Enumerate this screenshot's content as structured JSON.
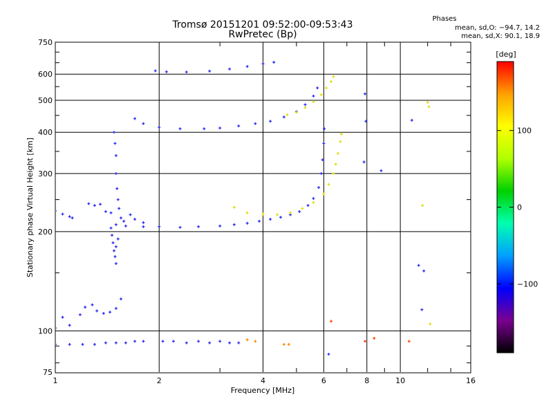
{
  "title_line1": "Tromsø 20151201 09:52:00-09:53:43",
  "title_line2": "RwPretec (Bp)",
  "phases_header": "Phases",
  "phases_o": "mean, sd,O: −94.7, 14.2",
  "phases_x": "mean, sd,X:  90.1, 18.9",
  "colorbar": {
    "unit": "[deg]",
    "ticks": [
      {
        "value": 100,
        "label": "100"
      },
      {
        "value": 0,
        "label": "0"
      },
      {
        "value": -100,
        "label": "−100"
      }
    ],
    "range": [
      -190,
      190
    ],
    "colors": [
      "#000000",
      "#7a0090",
      "#0000ff",
      "#00a0ff",
      "#00ffb0",
      "#00d000",
      "#b0ff00",
      "#ffff00",
      "#ffa000",
      "#ff0000"
    ]
  },
  "chart_data": {
    "type": "scatter",
    "xlabel": "Frequency [MHz]",
    "ylabel": "Stationary phase Virtual Height [km]",
    "x_scale": "log",
    "y_scale": "log",
    "xlim": [
      1,
      16
    ],
    "ylim": [
      75,
      750
    ],
    "x_ticks": [
      {
        "value": 1,
        "label": "1"
      },
      {
        "value": 2,
        "label": "2"
      },
      {
        "value": 4,
        "label": "4"
      },
      {
        "value": 6,
        "label": "6"
      },
      {
        "value": 8,
        "label": "8"
      },
      {
        "value": 10,
        "label": "10"
      },
      {
        "value": 16,
        "label": "16"
      }
    ],
    "y_ticks": [
      {
        "value": 750,
        "label": "750"
      },
      {
        "value": 600,
        "label": "600"
      },
      {
        "value": 500,
        "label": "500"
      },
      {
        "value": 400,
        "label": "400"
      },
      {
        "value": 300,
        "label": "300"
      },
      {
        "value": 200,
        "label": "200"
      },
      {
        "value": 100,
        "label": "100"
      },
      {
        "value": 75,
        "label": "75"
      }
    ],
    "grid": true,
    "series": [
      {
        "color": "#2a2af0",
        "points": [
          [
            1.0,
            231
          ],
          [
            1.05,
            226
          ],
          [
            1.1,
            222
          ],
          [
            1.12,
            220
          ],
          [
            1.25,
            243
          ],
          [
            1.3,
            240
          ],
          [
            1.35,
            242
          ],
          [
            1.4,
            230
          ],
          [
            1.45,
            228
          ]
        ]
      },
      {
        "color": "#2a2af0",
        "points": [
          [
            1.48,
            400
          ],
          [
            1.49,
            370
          ],
          [
            1.5,
            340
          ],
          [
            1.5,
            300
          ],
          [
            1.51,
            270
          ],
          [
            1.52,
            250
          ],
          [
            1.53,
            235
          ],
          [
            1.55,
            220
          ],
          [
            1.58,
            215
          ],
          [
            1.65,
            225
          ],
          [
            1.7,
            218
          ],
          [
            1.8,
            213
          ]
        ]
      },
      {
        "color": "#2a2af0",
        "points": [
          [
            1.45,
            205
          ],
          [
            1.46,
            195
          ],
          [
            1.47,
            185
          ],
          [
            1.48,
            175
          ],
          [
            1.49,
            168
          ],
          [
            1.5,
            180
          ],
          [
            1.5,
            160
          ],
          [
            1.52,
            190
          ]
        ]
      },
      {
        "color": "#2a2af0",
        "points": [
          [
            1.5,
            210
          ],
          [
            1.6,
            208
          ],
          [
            1.8,
            207
          ],
          [
            2.0,
            207
          ],
          [
            2.3,
            206
          ],
          [
            2.6,
            207
          ],
          [
            3.0,
            208
          ],
          [
            3.3,
            210
          ],
          [
            3.6,
            212
          ],
          [
            3.9,
            215
          ],
          [
            4.2,
            218
          ],
          [
            4.5,
            221
          ],
          [
            4.8,
            225
          ],
          [
            5.1,
            230
          ],
          [
            5.4,
            240
          ],
          [
            5.6,
            252
          ],
          [
            5.8,
            272
          ],
          [
            5.9,
            300
          ],
          [
            5.95,
            330
          ],
          [
            6.0,
            370
          ],
          [
            6.02,
            410
          ]
        ]
      },
      {
        "color": "#2a2af0",
        "points": [
          [
            1.7,
            440
          ],
          [
            1.8,
            425
          ],
          [
            2.0,
            414
          ],
          [
            2.3,
            410
          ],
          [
            2.7,
            410
          ],
          [
            3.0,
            412
          ],
          [
            3.4,
            418
          ],
          [
            3.8,
            425
          ],
          [
            4.2,
            432
          ],
          [
            4.6,
            445
          ],
          [
            5.0,
            462
          ],
          [
            5.3,
            485
          ],
          [
            5.6,
            515
          ],
          [
            5.75,
            545
          ]
        ]
      },
      {
        "color": "#2a2af0",
        "points": [
          [
            1.95,
            614
          ],
          [
            2.1,
            610
          ],
          [
            2.4,
            609
          ],
          [
            2.8,
            613
          ],
          [
            3.2,
            622
          ],
          [
            3.6,
            633
          ],
          [
            4.0,
            645
          ],
          [
            4.3,
            652
          ]
        ]
      },
      {
        "color": "#2a2af0",
        "points": [
          [
            1.0,
            102
          ],
          [
            1.05,
            110
          ],
          [
            1.1,
            104
          ],
          [
            1.18,
            112
          ],
          [
            1.22,
            118
          ],
          [
            1.28,
            120
          ],
          [
            1.32,
            115
          ],
          [
            1.38,
            113
          ],
          [
            1.44,
            114
          ],
          [
            1.5,
            117
          ],
          [
            1.55,
            125
          ]
        ]
      },
      {
        "color": "#2a2af0",
        "points": [
          [
            1.0,
            91
          ],
          [
            1.1,
            91
          ],
          [
            1.2,
            91
          ],
          [
            1.3,
            91
          ],
          [
            1.4,
            92
          ],
          [
            1.5,
            92
          ],
          [
            1.6,
            92
          ],
          [
            1.7,
            93
          ],
          [
            1.8,
            93
          ],
          [
            2.05,
            93
          ],
          [
            2.2,
            93
          ],
          [
            2.4,
            92
          ],
          [
            2.6,
            93
          ],
          [
            2.8,
            92
          ],
          [
            3.0,
            93
          ],
          [
            3.2,
            92
          ],
          [
            3.4,
            92
          ]
        ]
      },
      {
        "color": "#dddd00",
        "points": [
          [
            3.3,
            237
          ],
          [
            3.6,
            228
          ],
          [
            4.0,
            226
          ],
          [
            4.4,
            225
          ],
          [
            4.8,
            228
          ],
          [
            5.2,
            235
          ],
          [
            5.6,
            245
          ],
          [
            6.0,
            260
          ],
          [
            6.2,
            278
          ],
          [
            6.4,
            300
          ],
          [
            6.5,
            320
          ],
          [
            6.6,
            345
          ],
          [
            6.7,
            375
          ],
          [
            6.75,
            395
          ]
        ]
      },
      {
        "color": "#dddd00",
        "points": [
          [
            4.7,
            452
          ],
          [
            5.0,
            460
          ],
          [
            5.3,
            475
          ],
          [
            5.6,
            495
          ],
          [
            5.9,
            520
          ],
          [
            6.1,
            545
          ],
          [
            6.3,
            570
          ],
          [
            6.4,
            590
          ]
        ]
      },
      {
        "color": "#ff8800",
        "points": [
          [
            3.6,
            94
          ],
          [
            3.8,
            93
          ],
          [
            4.6,
            91
          ],
          [
            4.75,
            91
          ]
        ]
      },
      {
        "color": "#ff4400",
        "points": [
          [
            6.3,
            107
          ],
          [
            7.9,
            93
          ],
          [
            10.6,
            93
          ],
          [
            8.4,
            95
          ]
        ]
      },
      {
        "color": "#dddd00",
        "points": [
          [
            12.1,
            478
          ],
          [
            12.0,
            493
          ],
          [
            11.6,
            240
          ],
          [
            12.2,
            105
          ]
        ]
      },
      {
        "color": "#2a2af0",
        "points": [
          [
            7.9,
            523
          ],
          [
            7.95,
            432
          ],
          [
            10.8,
            435
          ],
          [
            8.8,
            306
          ],
          [
            7.85,
            325
          ],
          [
            11.3,
            158
          ],
          [
            11.7,
            152
          ],
          [
            11.55,
            116
          ],
          [
            6.2,
            85
          ]
        ]
      }
    ]
  }
}
